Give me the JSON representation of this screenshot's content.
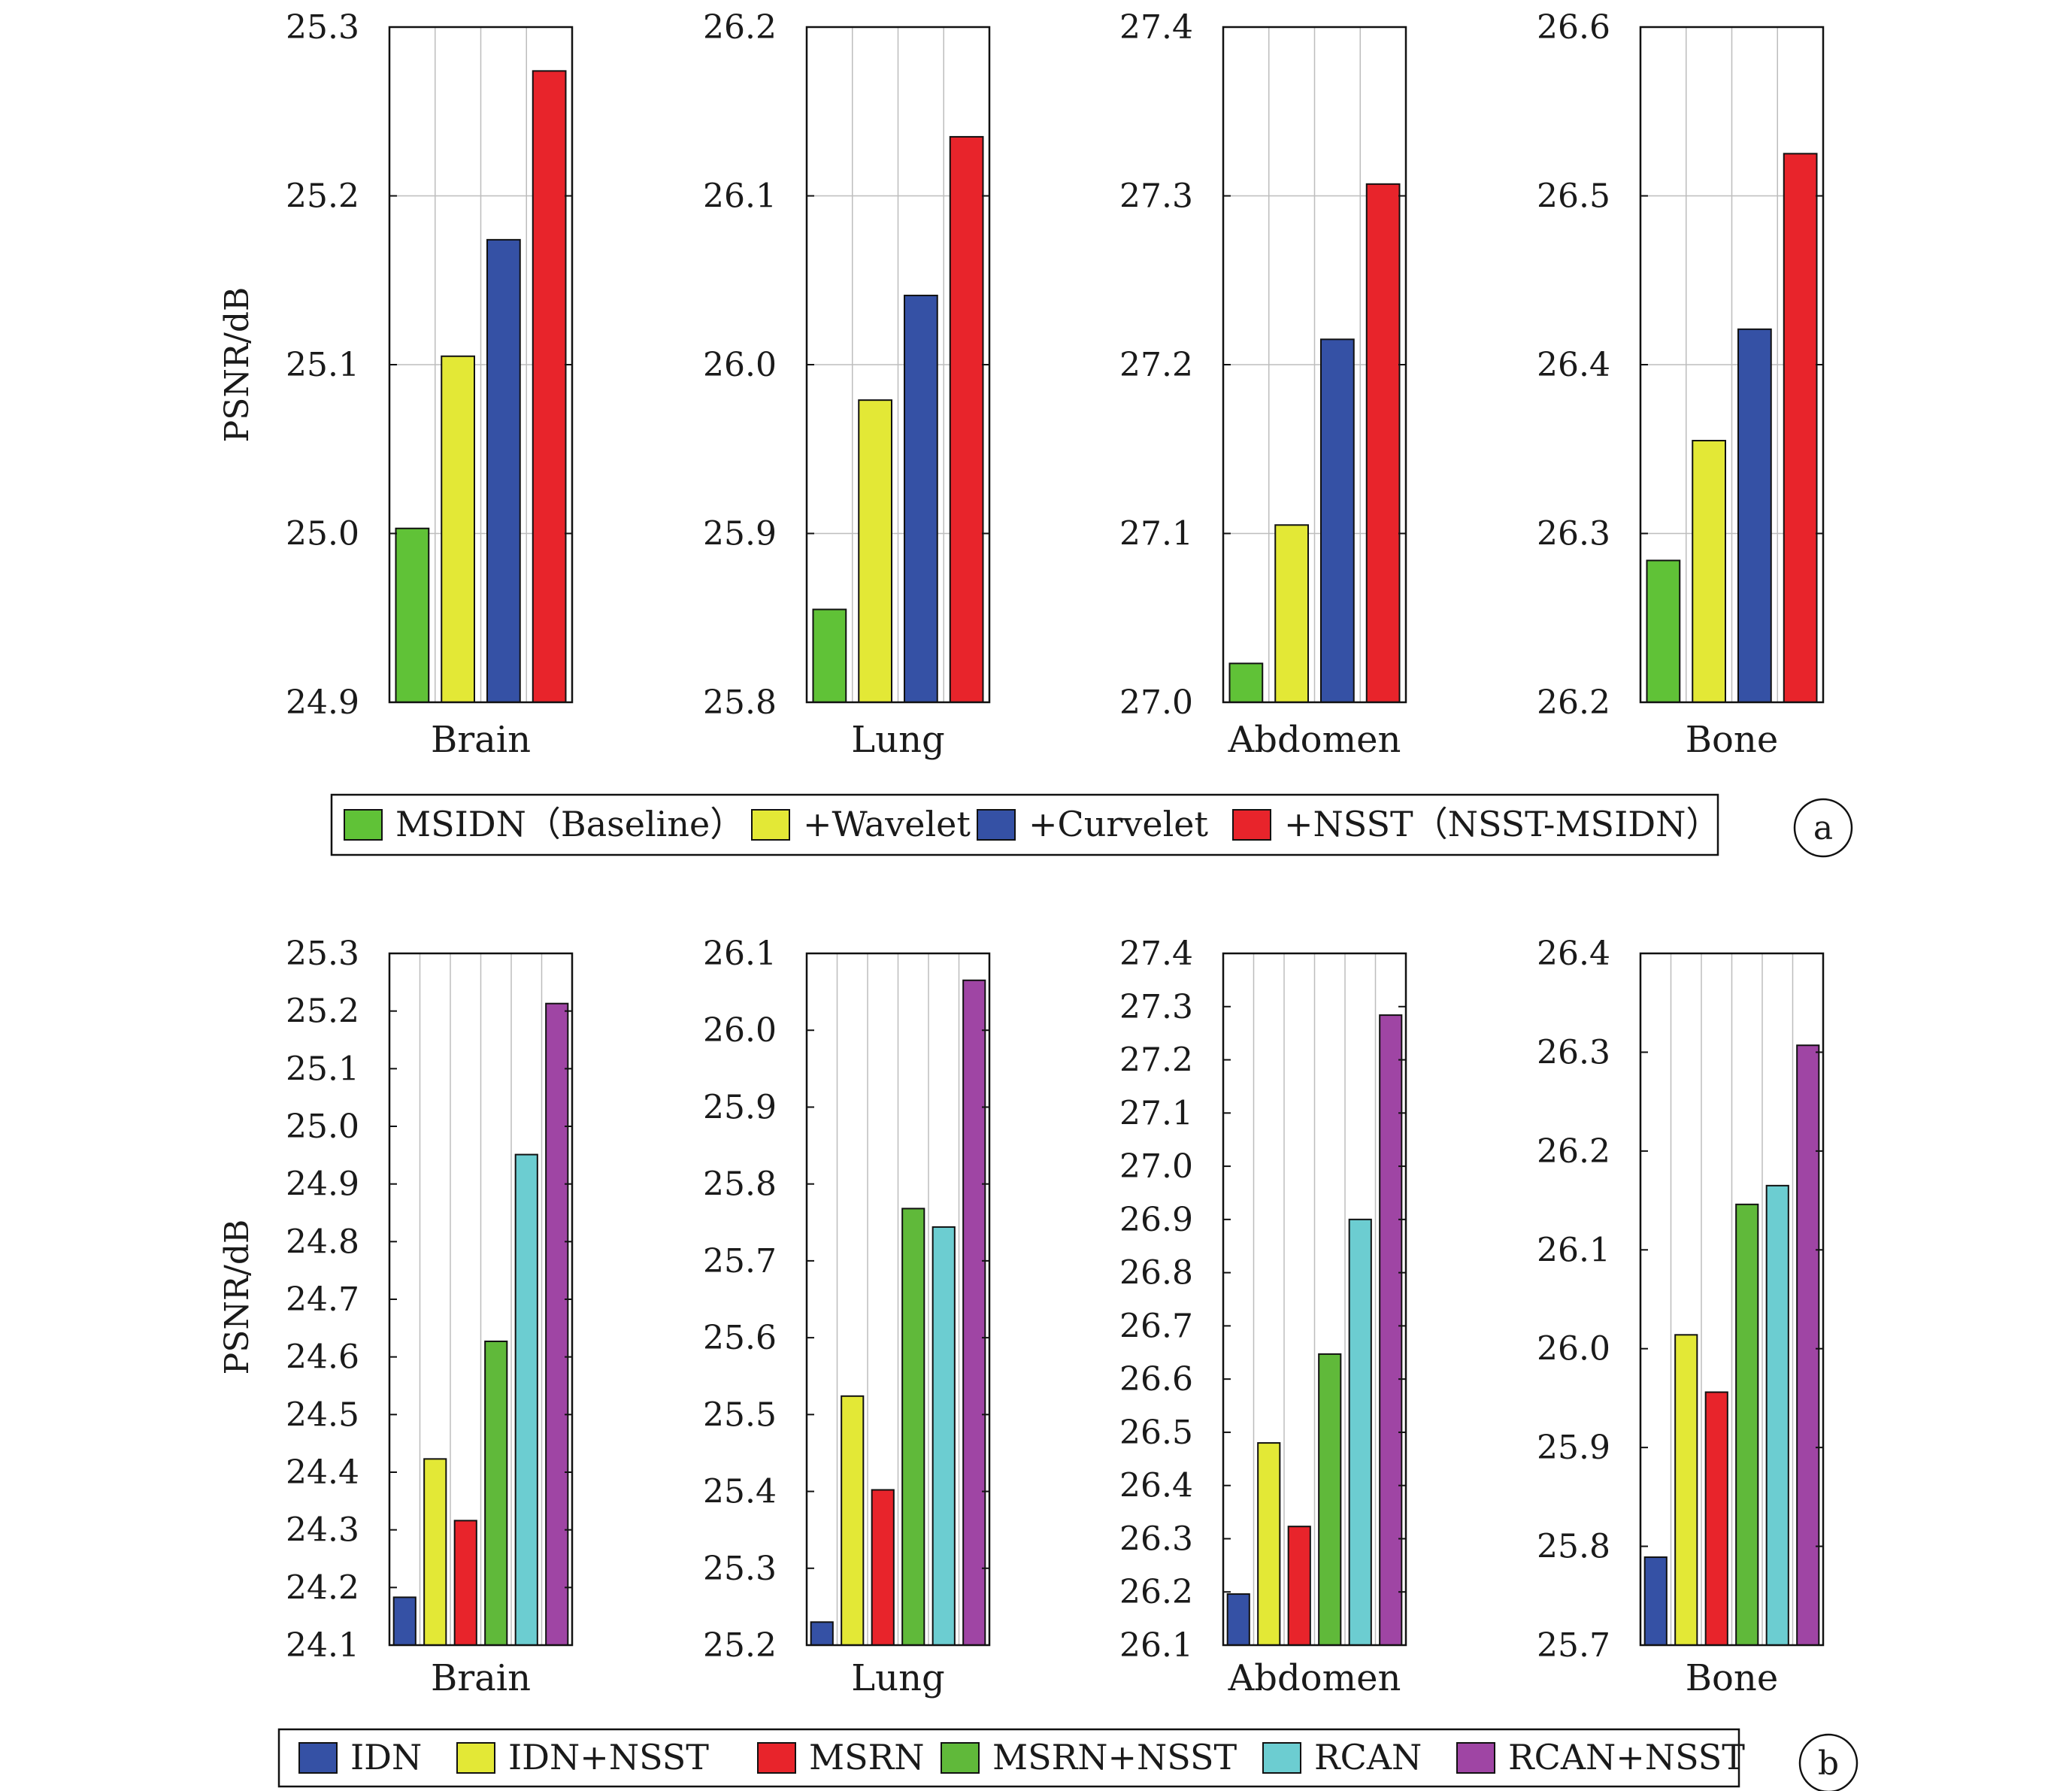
{
  "chart_data": [
    {
      "id": "a",
      "type": "bar",
      "ylabel": "PSNR/dB",
      "panel_label": "a",
      "series": [
        {
          "name": "MSIDN（Baseline）",
          "color": "#60c237"
        },
        {
          "name": "+Wavelet",
          "color": "#e3e836"
        },
        {
          "name": "+Curvelet",
          "color": "#3551a5"
        },
        {
          "name": "+NSST（NSST-MSIDN）",
          "color": "#e8242b"
        }
      ],
      "subplots": [
        {
          "category": "Brain",
          "ylim": [
            24.9,
            25.3
          ],
          "ticks": [
            "24.9",
            "25.0",
            "25.1",
            "25.2",
            "25.3"
          ],
          "values": [
            25.003,
            25.105,
            25.174,
            25.274
          ]
        },
        {
          "category": "Lung",
          "ylim": [
            25.8,
            26.2
          ],
          "ticks": [
            "25.8",
            "25.9",
            "26.0",
            "26.1",
            "26.2"
          ],
          "values": [
            25.855,
            25.979,
            26.041,
            26.135
          ]
        },
        {
          "category": "Abdomen",
          "ylim": [
            27.0,
            27.4
          ],
          "ticks": [
            "27.0",
            "27.1",
            "27.2",
            "27.3",
            "27.4"
          ],
          "values": [
            27.023,
            27.105,
            27.215,
            27.307
          ]
        },
        {
          "category": "Bone",
          "ylim": [
            26.2,
            26.6
          ],
          "ticks": [
            "26.2",
            "26.3",
            "26.4",
            "26.5",
            "26.6"
          ],
          "values": [
            26.284,
            26.355,
            26.421,
            26.525
          ]
        }
      ]
    },
    {
      "id": "b",
      "type": "bar",
      "ylabel": "PSNR/dB",
      "panel_label": "b",
      "series": [
        {
          "name": "IDN",
          "color": "#3551a5"
        },
        {
          "name": "IDN+NSST",
          "color": "#e3e836"
        },
        {
          "name": "MSRN",
          "color": "#e8242b"
        },
        {
          "name": "MSRN+NSST",
          "color": "#60b93a"
        },
        {
          "name": "RCAN",
          "color": "#6ccdd1"
        },
        {
          "name": "RCAN+NSST",
          "color": "#9f45a4"
        }
      ],
      "subplots": [
        {
          "category": "Brain",
          "ylim": [
            24.1,
            25.3
          ],
          "ticks": [
            "24.1",
            "24.2",
            "24.3",
            "24.4",
            "24.5",
            "24.6",
            "24.7",
            "24.8",
            "24.9",
            "25.0",
            "25.1",
            "25.2",
            "25.3"
          ],
          "values": [
            24.183,
            24.423,
            24.316,
            24.627,
            24.951,
            25.213
          ]
        },
        {
          "category": "Lung",
          "ylim": [
            25.2,
            26.1
          ],
          "ticks": [
            "25.2",
            "25.3",
            "25.4",
            "25.5",
            "25.6",
            "25.7",
            "25.8",
            "25.9",
            "26.0",
            "26.1"
          ],
          "values": [
            25.23,
            25.524,
            25.402,
            25.768,
            25.744,
            26.065
          ]
        },
        {
          "category": "Abdomen",
          "ylim": [
            26.1,
            27.4
          ],
          "ticks": [
            "26.1",
            "26.2",
            "26.3",
            "26.4",
            "26.5",
            "26.6",
            "26.7",
            "26.8",
            "26.9",
            "27.0",
            "27.1",
            "27.2",
            "27.3",
            "27.4"
          ],
          "values": [
            26.196,
            26.48,
            26.323,
            26.647,
            26.9,
            27.284
          ]
        },
        {
          "category": "Bone",
          "ylim": [
            25.7,
            26.4
          ],
          "ticks": [
            "25.7",
            "25.8",
            "25.9",
            "26.0",
            "26.1",
            "26.2",
            "26.3",
            "26.4"
          ],
          "values": [
            25.789,
            26.014,
            25.956,
            26.146,
            26.165,
            26.307
          ]
        }
      ]
    }
  ]
}
